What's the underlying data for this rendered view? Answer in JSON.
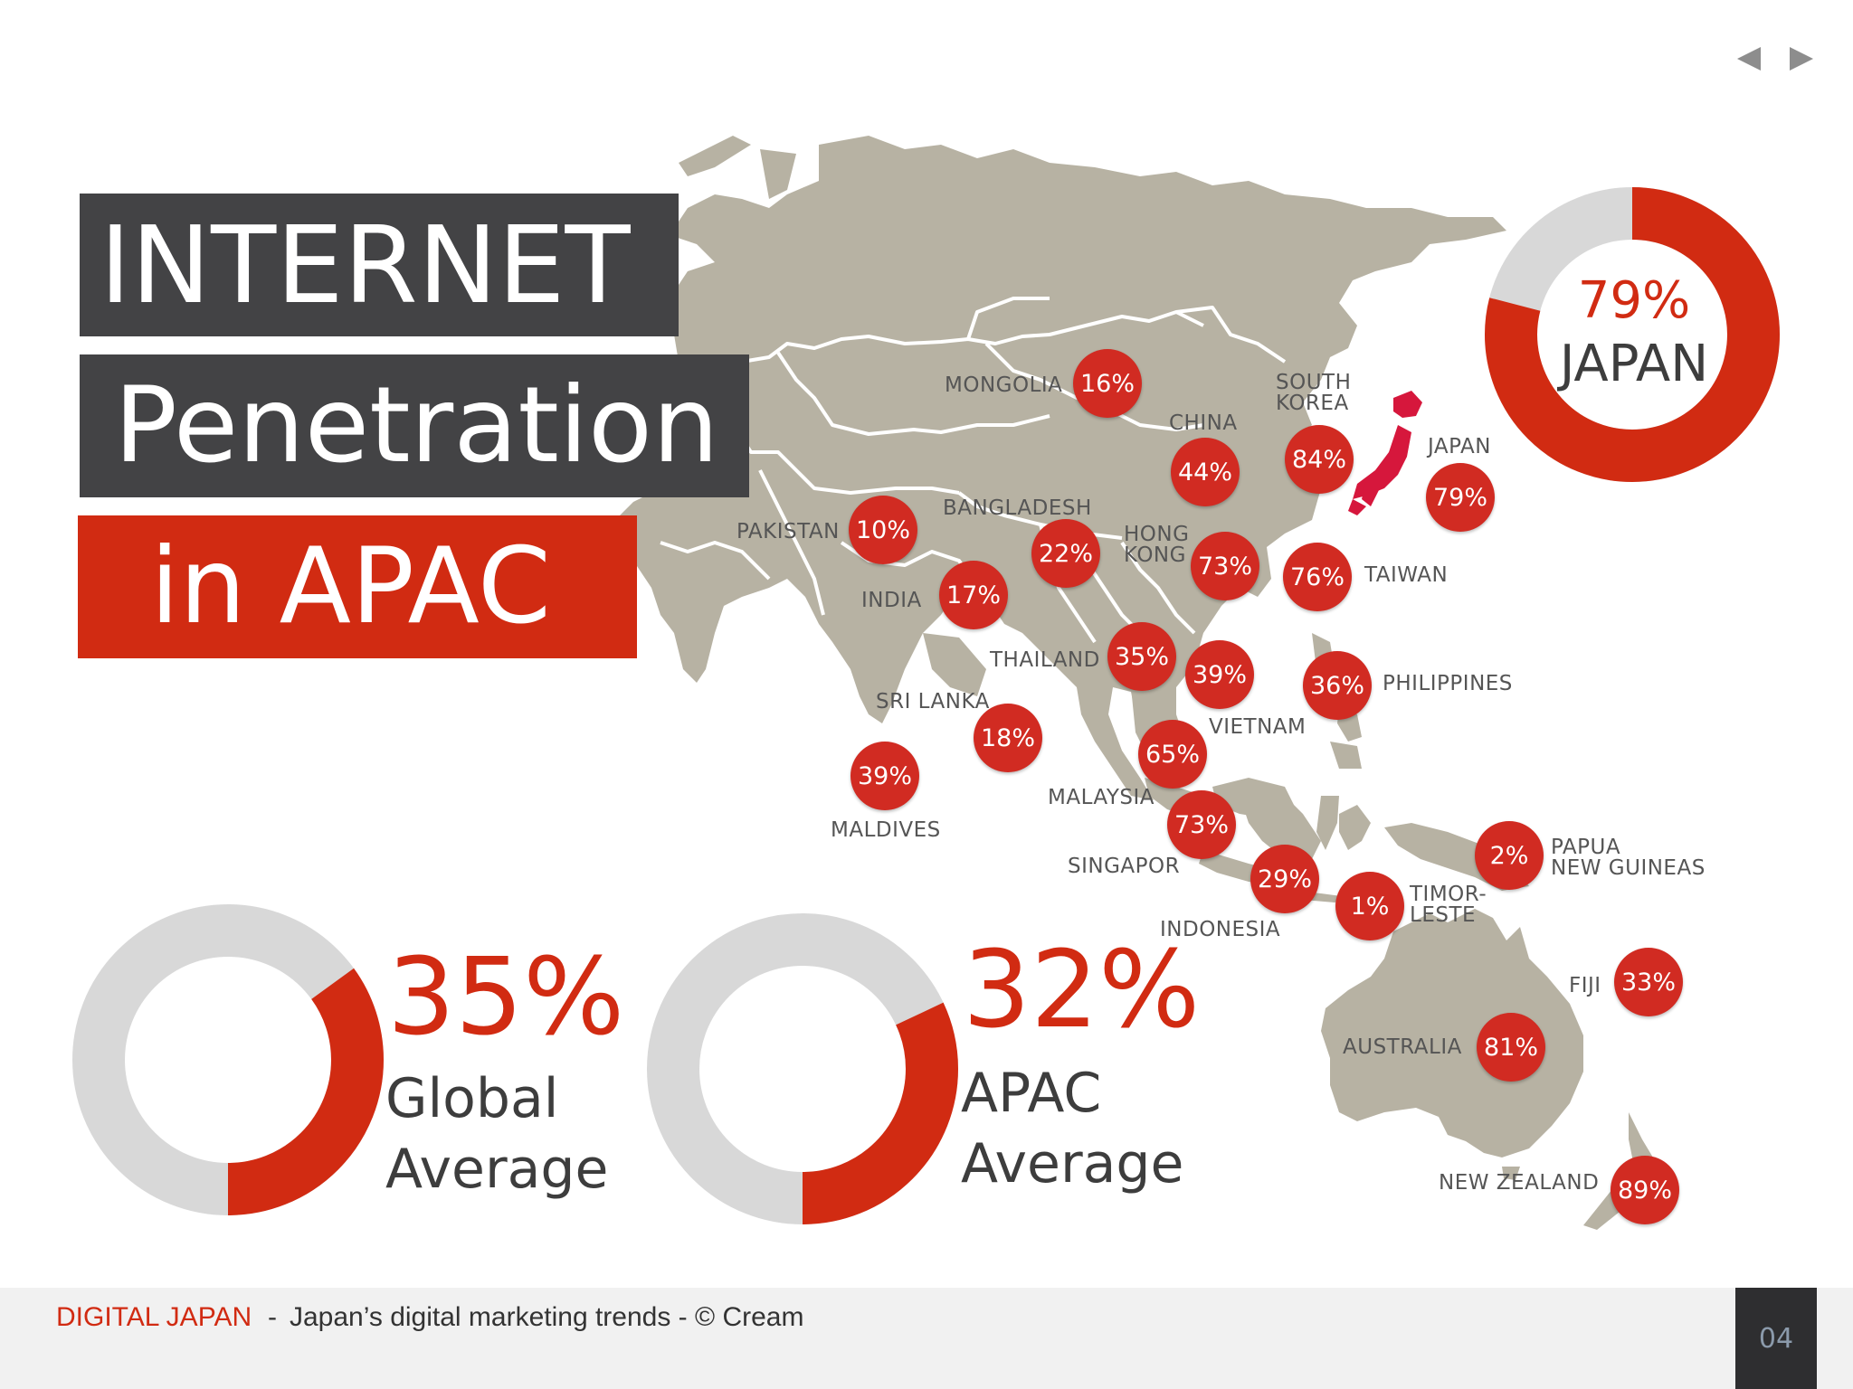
{
  "nav": {
    "prev_icon": "triangle-left-icon",
    "next_icon": "triangle-right-icon"
  },
  "title": {
    "line1": "INTERNET",
    "line2": "Penetration",
    "line3": "in APAC"
  },
  "colors": {
    "accent": "#d12b12",
    "bubble": "#d12b22",
    "dark_box": "#434345",
    "land": "#b7b2a3",
    "ring_bg": "#d8d8d8",
    "japan_highlight": "#d6173c"
  },
  "japan_donut": {
    "value": "79%",
    "label": "JAPAN",
    "fraction": 0.79
  },
  "global_donut": {
    "value": "35%",
    "label_line1": "Global",
    "label_line2": "Average",
    "fraction": 0.35
  },
  "apac_donut": {
    "value": "32%",
    "label_line1": "APAC",
    "label_line2": "Average",
    "fraction": 0.32
  },
  "countries": {
    "mongolia": {
      "name": "MONGOLIA",
      "value": "16%"
    },
    "china": {
      "name": "CHINA",
      "value": "44%"
    },
    "south_korea": {
      "name_line1": "SOUTH",
      "name_line2": "KOREA",
      "value": "84%"
    },
    "japan": {
      "name": "JAPAN",
      "value": "79%"
    },
    "pakistan": {
      "name": "PAKISTAN",
      "value": "10%"
    },
    "bangladesh": {
      "name": "BANGLADESH",
      "value": "22%"
    },
    "hong_kong": {
      "name_line1": "HONG",
      "name_line2": "KONG",
      "value": "73%"
    },
    "taiwan": {
      "name": "TAIWAN",
      "value": "76%"
    },
    "india": {
      "name": "INDIA",
      "value": "17%"
    },
    "thailand": {
      "name": "THAILAND",
      "value": "35%"
    },
    "vietnam": {
      "name": "VIETNAM",
      "value": "39%"
    },
    "philippines": {
      "name": "PHILIPPINES",
      "value": "36%"
    },
    "sri_lanka": {
      "name": "SRI LANKA",
      "value": "18%"
    },
    "maldives": {
      "name": "MALDIVES",
      "value": "39%"
    },
    "malaysia": {
      "name": "MALAYSIA",
      "value": "65%"
    },
    "singapore": {
      "name": "SINGAPOR",
      "value": "73%"
    },
    "indonesia": {
      "name": "INDONESIA",
      "value": "29%"
    },
    "timor_leste": {
      "name_line1": "TIMOR-",
      "name_line2": "LESTE",
      "value": "1%"
    },
    "papua": {
      "name_line1": "PAPUA",
      "name_line2": "NEW GUINEAS",
      "value": "2%"
    },
    "fiji": {
      "name": "FIJI",
      "value": "33%"
    },
    "australia": {
      "name": "AUSTRALIA",
      "value": "81%"
    },
    "new_zealand": {
      "name": "NEW ZEALAND",
      "value": "89%"
    }
  },
  "footer": {
    "brand": "DIGITAL JAPAN",
    "separator": "-",
    "text": "Japan’s digital marketing trends - © Cream",
    "page_number": "04"
  }
}
